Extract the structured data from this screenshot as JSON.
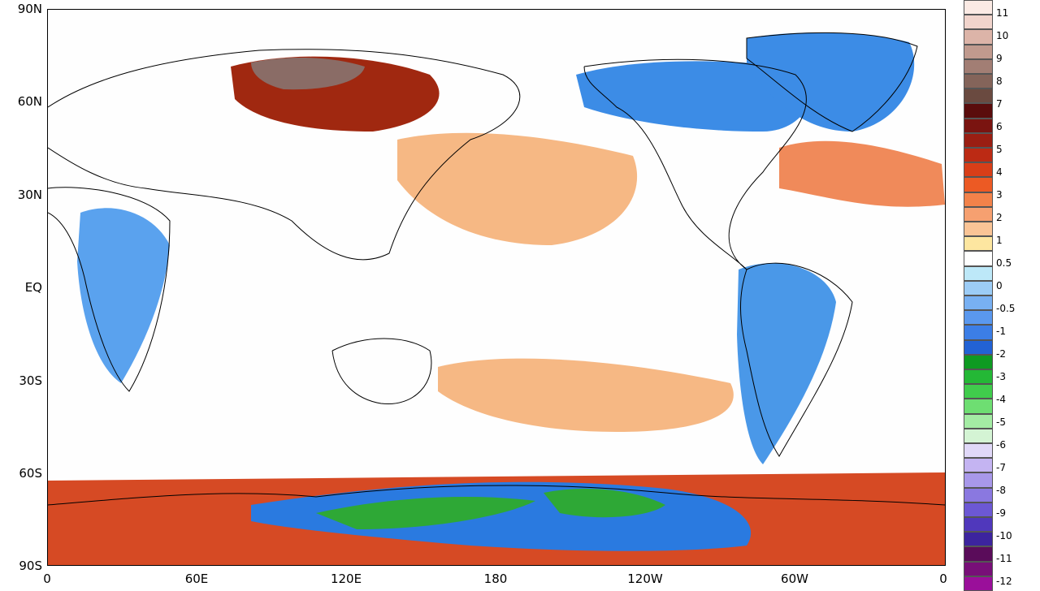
{
  "map": {
    "latitude_labels": [
      "90N",
      "60N",
      "30N",
      "EQ",
      "30S",
      "60S",
      "90S"
    ],
    "longitude_labels": [
      "0",
      "60E",
      "120E",
      "180",
      "120W",
      "60W",
      "0"
    ],
    "colors": {
      "ocean_neutral": "#fefefe",
      "land_outline": "#000000"
    },
    "regions": [
      {
        "name": "central-siberia-warm",
        "color": "#a02810"
      },
      {
        "name": "taymyr-extreme-warm",
        "color": "#8a6c66"
      },
      {
        "name": "north-pacific-warm",
        "color": "#f6b884"
      },
      {
        "name": "north-atlantic-warm",
        "color": "#f08a5a"
      },
      {
        "name": "southern-ocean-warm-belt",
        "color": "#d64a24"
      },
      {
        "name": "antarctica-cool",
        "color": "#2a7ae0"
      },
      {
        "name": "antarctica-cold-core",
        "color": "#2ea836"
      },
      {
        "name": "canada-cool",
        "color": "#3c8ce6"
      },
      {
        "name": "south-america-cool",
        "color": "#4a98e8"
      },
      {
        "name": "africa-cool",
        "color": "#5aa2ee"
      }
    ]
  },
  "colorbar": {
    "labels": [
      "11",
      "10",
      "9",
      "8",
      "7",
      "6",
      "5",
      "4",
      "3",
      "2",
      "1",
      "0.5",
      "0",
      "-0.5",
      "-1",
      "-2",
      "-3",
      "-4",
      "-5",
      "-6",
      "-7",
      "-8",
      "-9",
      "-10",
      "-11",
      "-12"
    ],
    "colors": [
      "#fbeae4",
      "#f1d4cc",
      "#dcb4a8",
      "#c09a8e",
      "#a27e74",
      "#84645a",
      "#6a4a40",
      "#5a0c0c",
      "#7a1410",
      "#9a1e12",
      "#bc2a14",
      "#d83e18",
      "#ec5a24",
      "#f2824a",
      "#f6a070",
      "#fac496",
      "#fde6a0",
      "#ffffff",
      "#bde8f8",
      "#9cccf6",
      "#78b0f2",
      "#5a98ee",
      "#3c7ee6",
      "#2262d4",
      "#0e9a22",
      "#24b836",
      "#40cc4c",
      "#6ede72",
      "#a4eca4",
      "#d4f4d4",
      "#e0d8f8",
      "#c4b4f2",
      "#a898ea",
      "#8a78e0",
      "#6c58d4",
      "#5038bc",
      "#3c249e",
      "#5a0c5a",
      "#780f78",
      "#9a0f9a"
    ]
  }
}
